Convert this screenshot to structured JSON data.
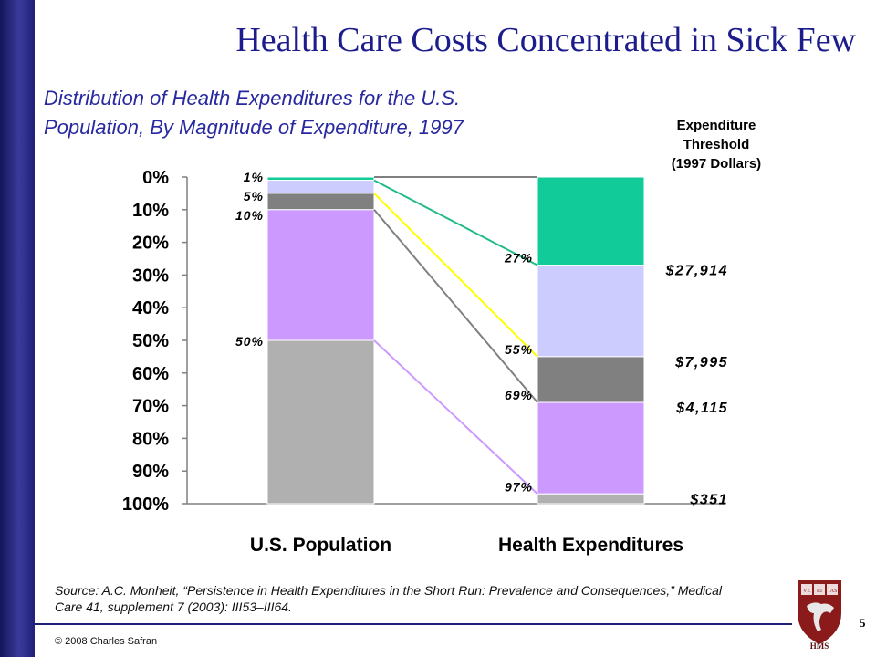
{
  "slide": {
    "title": "Health Care Costs Concentrated in Sick Few",
    "subtitle_line1": "Distribution of Health Expenditures for the U.S.",
    "subtitle_line2": "Population, By Magnitude of Expenditure, 1997",
    "threshold_header": [
      "Expenditure",
      "Threshold",
      "(1997 Dollars)"
    ],
    "source": "Source: A.C. Monheit, “Persistence in Health Expenditures in the Short Run: Prevalence and Consequences,” Medical Care 41, supplement 7 (2003): III53–III64.",
    "copyright": "© 2008 Charles Safran",
    "page_number": "5",
    "logo_text": "HMS",
    "logo_shield_text": [
      "VE",
      "RI",
      "TAS"
    ],
    "colors": {
      "side_bar": "#26268a",
      "title": "#1c1c8c",
      "subtitle": "#2828a0"
    }
  },
  "chart_data": {
    "type": "bar",
    "stacked": true,
    "categories": [
      "U.S. Population",
      "Health Expenditures"
    ],
    "y_ticks": [
      "0%",
      "10%",
      "20%",
      "30%",
      "40%",
      "50%",
      "60%",
      "70%",
      "80%",
      "90%",
      "100%"
    ],
    "ylim": [
      0,
      100
    ],
    "y_reversed": true,
    "segments": [
      {
        "color": "#11cc99",
        "values": [
          1,
          27
        ],
        "pop_label": "1%",
        "exp_label": "27%",
        "threshold": "$27,914",
        "line_color": "#22bb88"
      },
      {
        "color": "#ccccff",
        "values": [
          4,
          28
        ],
        "pop_label": "5%",
        "exp_label": "55%",
        "threshold": "$7,995",
        "line_color": "#ffff00"
      },
      {
        "color": "#808080",
        "values": [
          5,
          14
        ],
        "pop_label": "10%",
        "exp_label": "69%",
        "threshold": "$4,115",
        "line_color": "#808080"
      },
      {
        "color": "#cc99ff",
        "values": [
          40,
          28
        ],
        "pop_label": "50%",
        "exp_label": "97%",
        "threshold": "$351",
        "line_color": "#cc99ff"
      },
      {
        "color": "#b0b0b0",
        "values": [
          50,
          3
        ],
        "pop_label": "",
        "exp_label": "",
        "threshold": "",
        "line_color": ""
      }
    ]
  }
}
